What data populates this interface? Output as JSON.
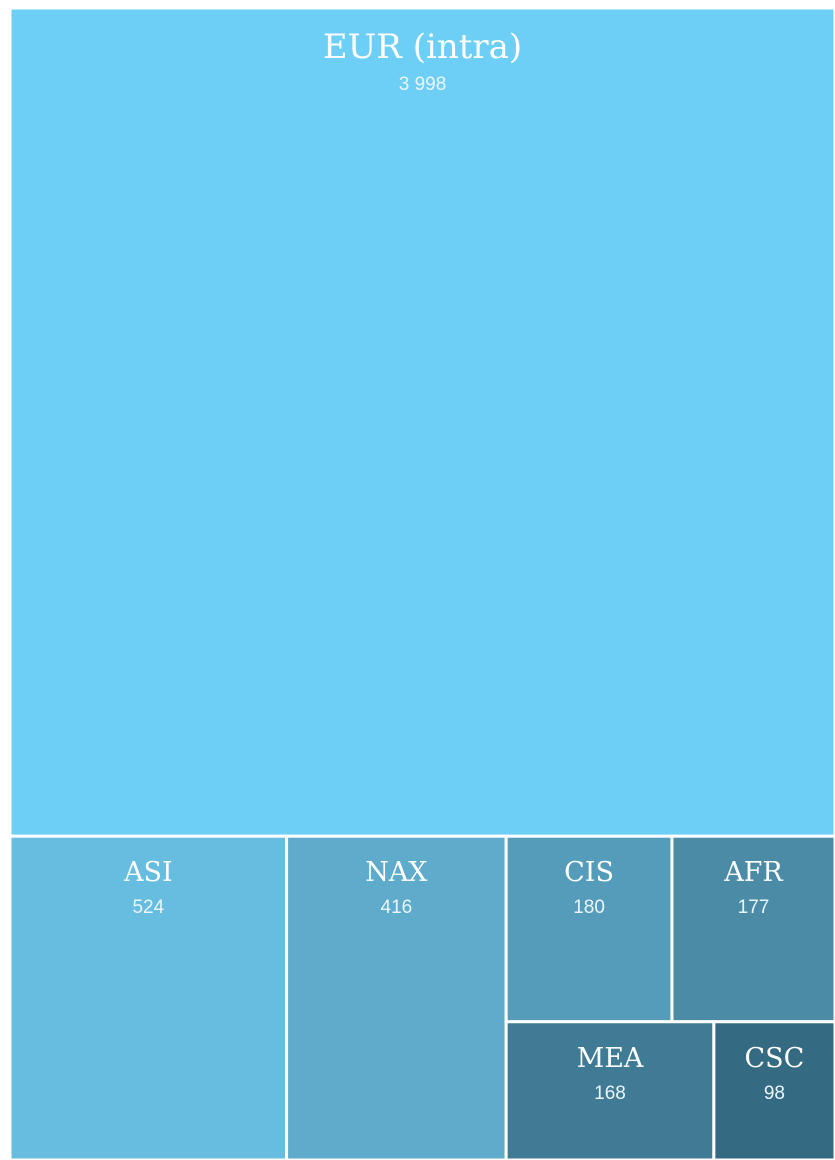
{
  "chart_data": {
    "type": "treemap",
    "categories": [
      "EUR (intra)",
      "ASI",
      "NAX",
      "CIS",
      "AFR",
      "MEA",
      "CSC"
    ],
    "values": [
      3998,
      524,
      416,
      180,
      177,
      168,
      98
    ],
    "value_labels": [
      "3 998",
      "524",
      "416",
      "180",
      "177",
      "168",
      "98"
    ],
    "colors": [
      "#6dcff6",
      "#67bde0",
      "#5eabcc",
      "#549cba",
      "#4b8ba6",
      "#3f7b94",
      "#356b82"
    ]
  }
}
